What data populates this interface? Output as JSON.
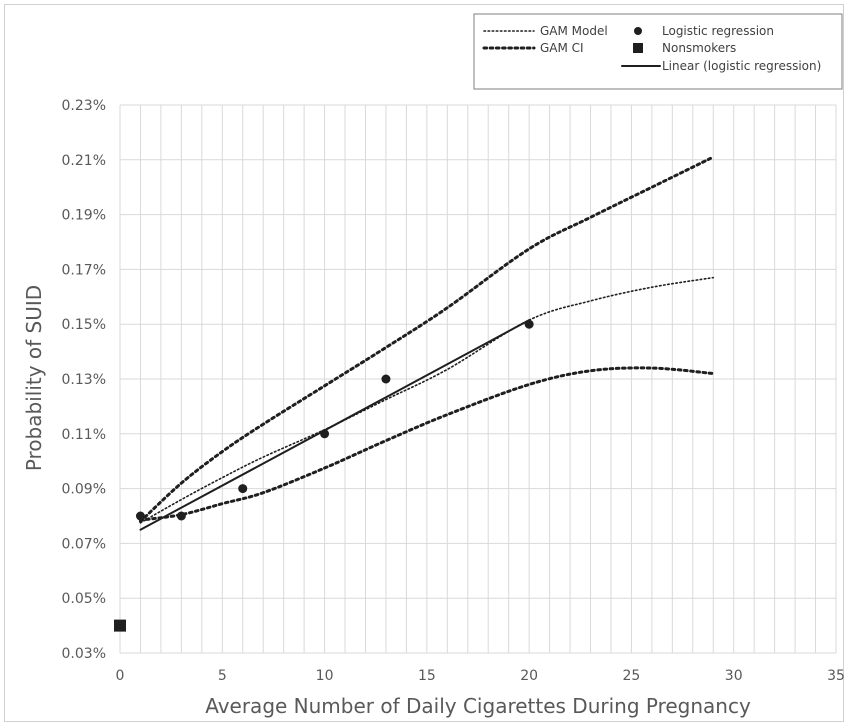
{
  "chart_data": {
    "type": "line",
    "title": "",
    "xlabel": "Average Number of Daily Cigarettes During Pregnancy",
    "ylabel": "Probability of SUID",
    "xlim": [
      0,
      35
    ],
    "ylim": [
      0.03,
      0.23
    ],
    "x_ticks": [
      0,
      5,
      10,
      15,
      20,
      25,
      30,
      35
    ],
    "y_ticks": [
      0.03,
      0.05,
      0.07,
      0.09,
      0.11,
      0.13,
      0.15,
      0.17,
      0.19,
      0.21,
      0.23
    ],
    "x_tick_labels": [
      "0",
      "5",
      "10",
      "15",
      "20",
      "25",
      "30",
      "35"
    ],
    "y_tick_labels": [
      "0.03%",
      "0.05%",
      "0.07%",
      "0.09%",
      "0.11%",
      "0.13%",
      "0.15%",
      "0.17%",
      "0.19%",
      "0.21%",
      "0.23%"
    ],
    "grid": {
      "vertical_minor": true,
      "horizontal_major": true
    },
    "legend_position": "top-right",
    "series": [
      {
        "name": "GAM Model",
        "kind": "line",
        "style": "dotted",
        "x": [
          1,
          3,
          5,
          7,
          10,
          13,
          16,
          20,
          23,
          26,
          29
        ],
        "y": [
          0.0775,
          0.086,
          0.094,
          0.1015,
          0.1115,
          0.1225,
          0.1335,
          0.1515,
          0.1585,
          0.1635,
          0.167
        ]
      },
      {
        "name": "GAM CI",
        "kind": "line",
        "style": "dotted-heavy",
        "band": "upper",
        "x": [
          1,
          3,
          5,
          7,
          10,
          13,
          16,
          20,
          23,
          26,
          29
        ],
        "y": [
          0.078,
          0.092,
          0.1035,
          0.1135,
          0.1275,
          0.1415,
          0.156,
          0.1775,
          0.189,
          0.2,
          0.211
        ]
      },
      {
        "name": "GAM CI",
        "kind": "line",
        "style": "dotted-heavy",
        "band": "lower",
        "x": [
          1,
          3,
          5,
          7,
          10,
          13,
          16,
          20,
          23,
          26,
          29
        ],
        "y": [
          0.0785,
          0.0805,
          0.0845,
          0.0885,
          0.0975,
          0.1075,
          0.117,
          0.128,
          0.133,
          0.134,
          0.132
        ]
      },
      {
        "name": "Logistic regression",
        "kind": "scatter",
        "marker": "circle",
        "x": [
          1,
          3,
          6,
          10,
          13,
          20
        ],
        "y": [
          0.08,
          0.08,
          0.09,
          0.11,
          0.13,
          0.15
        ]
      },
      {
        "name": "Nonsmokers",
        "kind": "scatter",
        "marker": "square",
        "x": [
          0
        ],
        "y": [
          0.04
        ]
      },
      {
        "name": "Linear (logistic regression)",
        "kind": "line",
        "style": "solid",
        "x": [
          1,
          20
        ],
        "y": [
          0.075,
          0.1515
        ]
      }
    ],
    "legend": [
      {
        "label": "GAM Model",
        "symbol": "dotted"
      },
      {
        "label": "Logistic regression",
        "symbol": "circle"
      },
      {
        "label": "GAM CI",
        "symbol": "dotted-heavy"
      },
      {
        "label": "Nonsmokers",
        "symbol": "square"
      },
      {
        "label": "Linear (logistic regression)",
        "symbol": "solid"
      }
    ]
  },
  "colors": {
    "series": "#1f1f1f",
    "grid": "#d9d9d9",
    "text": "#595959",
    "background": "#ffffff"
  }
}
